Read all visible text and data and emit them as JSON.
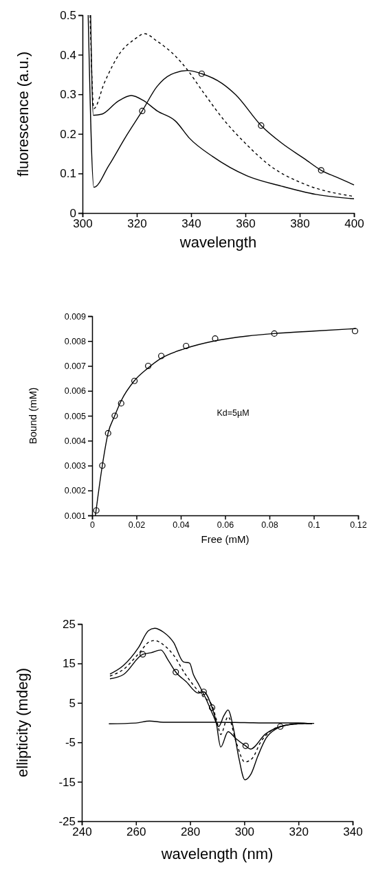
{
  "chart_data": [
    {
      "type": "line",
      "xlabel": "wavelength",
      "ylabel": "fluorescence (a.u.)",
      "xlim": [
        300,
        400
      ],
      "ylim": [
        0,
        0.5
      ],
      "xticks": [
        300,
        320,
        340,
        360,
        380,
        400
      ],
      "yticks": [
        0,
        0.1,
        0.2,
        0.3,
        0.4,
        0.5
      ],
      "series": [
        {
          "color": "#000000",
          "line_style": "solid",
          "x": [
            302.1,
            304.2,
            309.7,
            315.7,
            322,
            327.5,
            332.6,
            338.6,
            343.9,
            351.3,
            356.4,
            365.8,
            373.3,
            381.8,
            387.9,
            394.5,
            400
          ],
          "values": [
            0.5,
            0.065,
            0.12,
            0.19,
            0.258,
            0.32,
            0.35,
            0.36,
            0.352,
            0.328,
            0.299,
            0.221,
            0.177,
            0.137,
            0.108,
            0.088,
            0.071
          ]
        },
        {
          "type": "scatter",
          "color": "#000000",
          "marker": "circle",
          "x": [
            322,
            343.9,
            365.8,
            387.9
          ],
          "values": [
            0.258,
            0.352,
            0.221,
            0.108
          ]
        },
        {
          "color": "#000000",
          "line_style": "solid",
          "x": [
            303,
            304,
            307.2,
            313,
            318,
            322.5,
            327.5,
            334.3,
            339.4,
            347.9,
            360.6,
            373.3,
            386,
            400
          ],
          "values": [
            0.5,
            0.247,
            0.25,
            0.282,
            0.297,
            0.284,
            0.258,
            0.232,
            0.189,
            0.143,
            0.094,
            0.068,
            0.047,
            0.036
          ]
        },
        {
          "color": "#000000",
          "line_style": "dashed",
          "x": [
            302.8,
            304.2,
            308,
            314,
            319,
            322.9,
            327.5,
            334.3,
            338.6,
            344.5,
            352.1,
            360.6,
            369,
            381.8,
            400
          ],
          "values": [
            0.5,
            0.264,
            0.328,
            0.406,
            0.438,
            0.453,
            0.434,
            0.396,
            0.362,
            0.305,
            0.235,
            0.172,
            0.12,
            0.073,
            0.042
          ]
        }
      ]
    },
    {
      "type": "scatter",
      "xlabel": "Free (mM)",
      "ylabel": "Bound (mM)",
      "xlim": [
        0,
        0.12
      ],
      "ylim": [
        0.001,
        0.009
      ],
      "xticks": [
        0,
        0.02,
        0.04,
        0.06,
        0.08,
        0.1,
        0.12
      ],
      "yticks": [
        0.001,
        0.002,
        0.003,
        0.004,
        0.005,
        0.006,
        0.007,
        0.008,
        0.009
      ],
      "annotations": [
        "Kd=5µM"
      ],
      "series": [
        {
          "color": "#000000",
          "marker": "circle",
          "x": [
            0.0019,
            0.0046,
            0.0072,
            0.0102,
            0.0131,
            0.0191,
            0.0253,
            0.0312,
            0.0424,
            0.0555,
            0.0822,
            0.1186
          ],
          "values": [
            0.0012,
            0.003,
            0.0043,
            0.005,
            0.0055,
            0.0064,
            0.007,
            0.0074,
            0.0078,
            0.0081,
            0.0083,
            0.0084
          ]
        },
        {
          "type": "line",
          "color": "#000000",
          "line_style": "solid",
          "x": [
            0.0015,
            0.0046,
            0.0072,
            0.0102,
            0.0131,
            0.019,
            0.025,
            0.031,
            0.042,
            0.055,
            0.07,
            0.082,
            0.1,
            0.119
          ],
          "values": [
            0.001,
            0.003,
            0.0043,
            0.005,
            0.0056,
            0.0064,
            0.0069,
            0.0073,
            0.0077,
            0.008,
            0.0082,
            0.0083,
            0.0084,
            0.0085
          ]
        }
      ]
    },
    {
      "type": "line",
      "xlabel": "wavelength (nm)",
      "ylabel": "ellipticity (mdeg)",
      "xlim": [
        240,
        340
      ],
      "ylim": [
        -25,
        25
      ],
      "xticks": [
        240,
        260,
        280,
        300,
        320,
        340
      ],
      "yticks": [
        -25,
        -15,
        -5,
        5,
        15,
        25
      ],
      "series": [
        {
          "color": "#000000",
          "line_style": "solid",
          "x": [
            250.4,
            255.4,
            261,
            264.6,
            266.9,
            270.2,
            273.9,
            277.5,
            279.8,
            281.2,
            283,
            285.8,
            288.6,
            290.5,
            292.5,
            294,
            296,
            298,
            300.2,
            302.5,
            305,
            308,
            312,
            316,
            320,
            325
          ],
          "values": [
            12.3,
            14.5,
            19.1,
            23.3,
            23.9,
            22.9,
            20.3,
            15.4,
            15.1,
            12.2,
            9.9,
            6.1,
            1.7,
            -1,
            1.8,
            3.2,
            -1.5,
            -9,
            -14.5,
            -13,
            -8.5,
            -4,
            -1.5,
            -0.6,
            -0.3,
            -0.2
          ]
        },
        {
          "color": "#000000",
          "line_style": "dashed",
          "x": [
            250.4,
            255.4,
            261,
            265,
            267,
            270,
            274,
            278,
            283,
            285,
            288,
            290,
            291.3,
            294,
            297,
            300.2,
            303,
            306,
            310,
            315,
            320,
            325
          ],
          "values": [
            11.8,
            13.5,
            17.5,
            20.5,
            20.8,
            19.8,
            17,
            12.5,
            8,
            6.5,
            4.5,
            0,
            -3,
            1.5,
            -5,
            -10,
            -9,
            -5,
            -2,
            -0.7,
            -0.3,
            -0.2
          ]
        },
        {
          "color": "#000000",
          "line_style": "solid",
          "x": [
            250.4,
            255.4,
            262.5,
            265.5,
            269.2,
            272,
            274.7,
            278.5,
            283,
            285,
            288.1,
            289.5,
            291.3,
            294,
            296.8,
            300.5,
            302.3,
            307.8,
            313.3,
            319.8,
            325.8
          ],
          "values": [
            11.1,
            12.2,
            17.3,
            17.7,
            18.4,
            15.7,
            12.8,
            10.4,
            7.5,
            7.8,
            3.8,
            0.6,
            -6.2,
            -2.3,
            -4,
            -5.9,
            -6.7,
            -2.9,
            -1,
            -0.3,
            -0.2
          ]
        },
        {
          "type": "scatter",
          "color": "#000000",
          "marker": "circle",
          "x": [
            262.5,
            274.7,
            285,
            288.1,
            300.5,
            313.3
          ],
          "values": [
            17.3,
            12.8,
            7.8,
            3.8,
            -5.9,
            -1
          ]
        },
        {
          "color": "#000000",
          "line_style": "solid",
          "x": [
            250,
            260,
            265,
            270,
            280,
            290,
            300,
            310,
            320,
            325
          ],
          "values": [
            -0.3,
            -0.1,
            0.4,
            0.1,
            0.1,
            0.1,
            0,
            -0.1,
            -0.1,
            -0.3
          ]
        }
      ]
    }
  ]
}
